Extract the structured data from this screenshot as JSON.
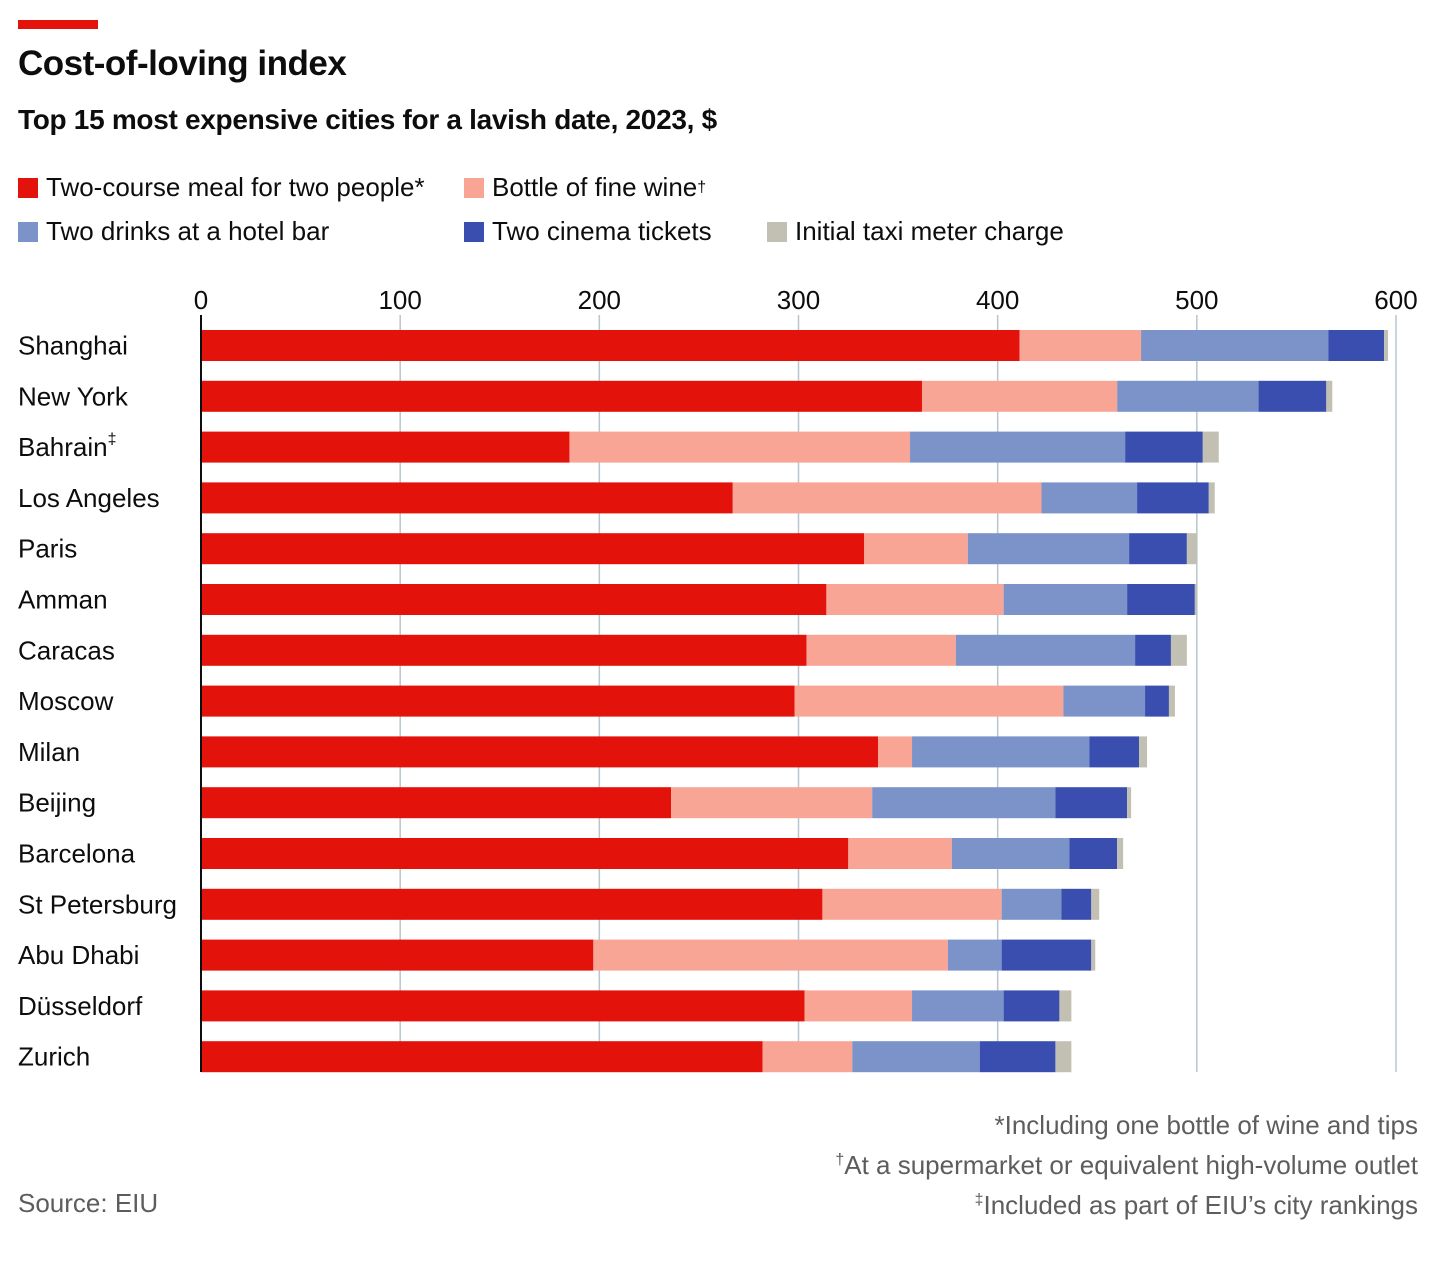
{
  "header": {
    "title": "Cost-of-loving index",
    "subtitle": "Top 15 most expensive cities for a lavish date, 2023, $"
  },
  "legend": [
    {
      "label": "Two-course meal for two people*",
      "color": "#e3120b"
    },
    {
      "label": "Bottle of fine wine",
      "sup": "†",
      "color": "#f9a596"
    },
    {
      "label": "Two drinks at a hotel bar",
      "color": "#7b93c8"
    },
    {
      "label": "Two cinema tickets",
      "color": "#3a4eb0"
    },
    {
      "label": "Initial taxi meter charge",
      "color": "#c2c0b2"
    }
  ],
  "chart_data": {
    "type": "bar",
    "orientation": "horizontal",
    "stacked": true,
    "title": "Cost-of-loving index",
    "subtitle": "Top 15 most expensive cities for a lavish date, 2023, $",
    "xlim": [
      0,
      600
    ],
    "xticks": [
      "0",
      "100",
      "200",
      "300",
      "400",
      "500",
      "600"
    ],
    "grid": true,
    "categories": [
      {
        "name": "Shanghai",
        "sup": ""
      },
      {
        "name": "New York",
        "sup": ""
      },
      {
        "name": "Bahrain",
        "sup": "‡"
      },
      {
        "name": "Los Angeles",
        "sup": ""
      },
      {
        "name": "Paris",
        "sup": ""
      },
      {
        "name": "Amman",
        "sup": ""
      },
      {
        "name": "Caracas",
        "sup": ""
      },
      {
        "name": "Moscow",
        "sup": ""
      },
      {
        "name": "Milan",
        "sup": ""
      },
      {
        "name": "Beijing",
        "sup": ""
      },
      {
        "name": "Barcelona",
        "sup": ""
      },
      {
        "name": "St Petersburg",
        "sup": ""
      },
      {
        "name": "Abu Dhabi",
        "sup": ""
      },
      {
        "name": "Düsseldorf",
        "sup": ""
      },
      {
        "name": "Zurich",
        "sup": ""
      }
    ],
    "series": [
      {
        "name": "Two-course meal for two people*",
        "color": "#e3120b",
        "values": [
          411,
          362,
          185,
          267,
          333,
          314,
          304,
          298,
          340,
          236,
          325,
          312,
          197,
          303,
          282
        ]
      },
      {
        "name": "Bottle of fine wine",
        "color": "#f9a596",
        "values": [
          61,
          98,
          171,
          155,
          52,
          89,
          75,
          135,
          17,
          101,
          52,
          90,
          178,
          54,
          45
        ]
      },
      {
        "name": "Two drinks at a hotel bar",
        "color": "#7b93c8",
        "values": [
          94,
          71,
          108,
          48,
          81,
          62,
          90,
          41,
          89,
          92,
          59,
          30,
          27,
          46,
          64
        ]
      },
      {
        "name": "Two cinema tickets",
        "color": "#3a4eb0",
        "values": [
          28,
          34,
          39,
          36,
          29,
          34,
          18,
          12,
          25,
          36,
          24,
          15,
          45,
          28,
          38
        ]
      },
      {
        "name": "Initial taxi meter charge",
        "color": "#c2c0b2",
        "values": [
          2,
          3,
          8,
          3,
          5,
          1,
          8,
          3,
          4,
          2,
          3,
          4,
          2,
          6,
          8
        ]
      }
    ]
  },
  "footer": {
    "source": "Source: EIU",
    "notes": [
      {
        "sup": "",
        "text": "*Including one bottle of wine and tips"
      },
      {
        "sup": "†",
        "text": "At a supermarket or equivalent high-volume outlet"
      },
      {
        "sup": "‡",
        "text": "Included as part of EIU’s city rankings"
      }
    ]
  }
}
